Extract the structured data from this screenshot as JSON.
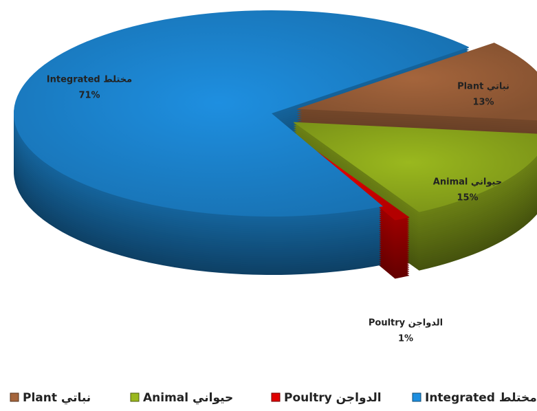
{
  "chart_data": {
    "type": "pie",
    "categories": [
      "Integrated مختلط",
      "Plant نباتي",
      "Animal حيواني",
      "Poultry الدواجن"
    ],
    "values": [
      71,
      13,
      15,
      1
    ],
    "value_labels": [
      "71%",
      "13%",
      "15%",
      "1%"
    ],
    "colors": [
      "#1e8fe0",
      "#a5653c",
      "#9ab81e",
      "#e00000"
    ],
    "legend": "bottom"
  }
}
